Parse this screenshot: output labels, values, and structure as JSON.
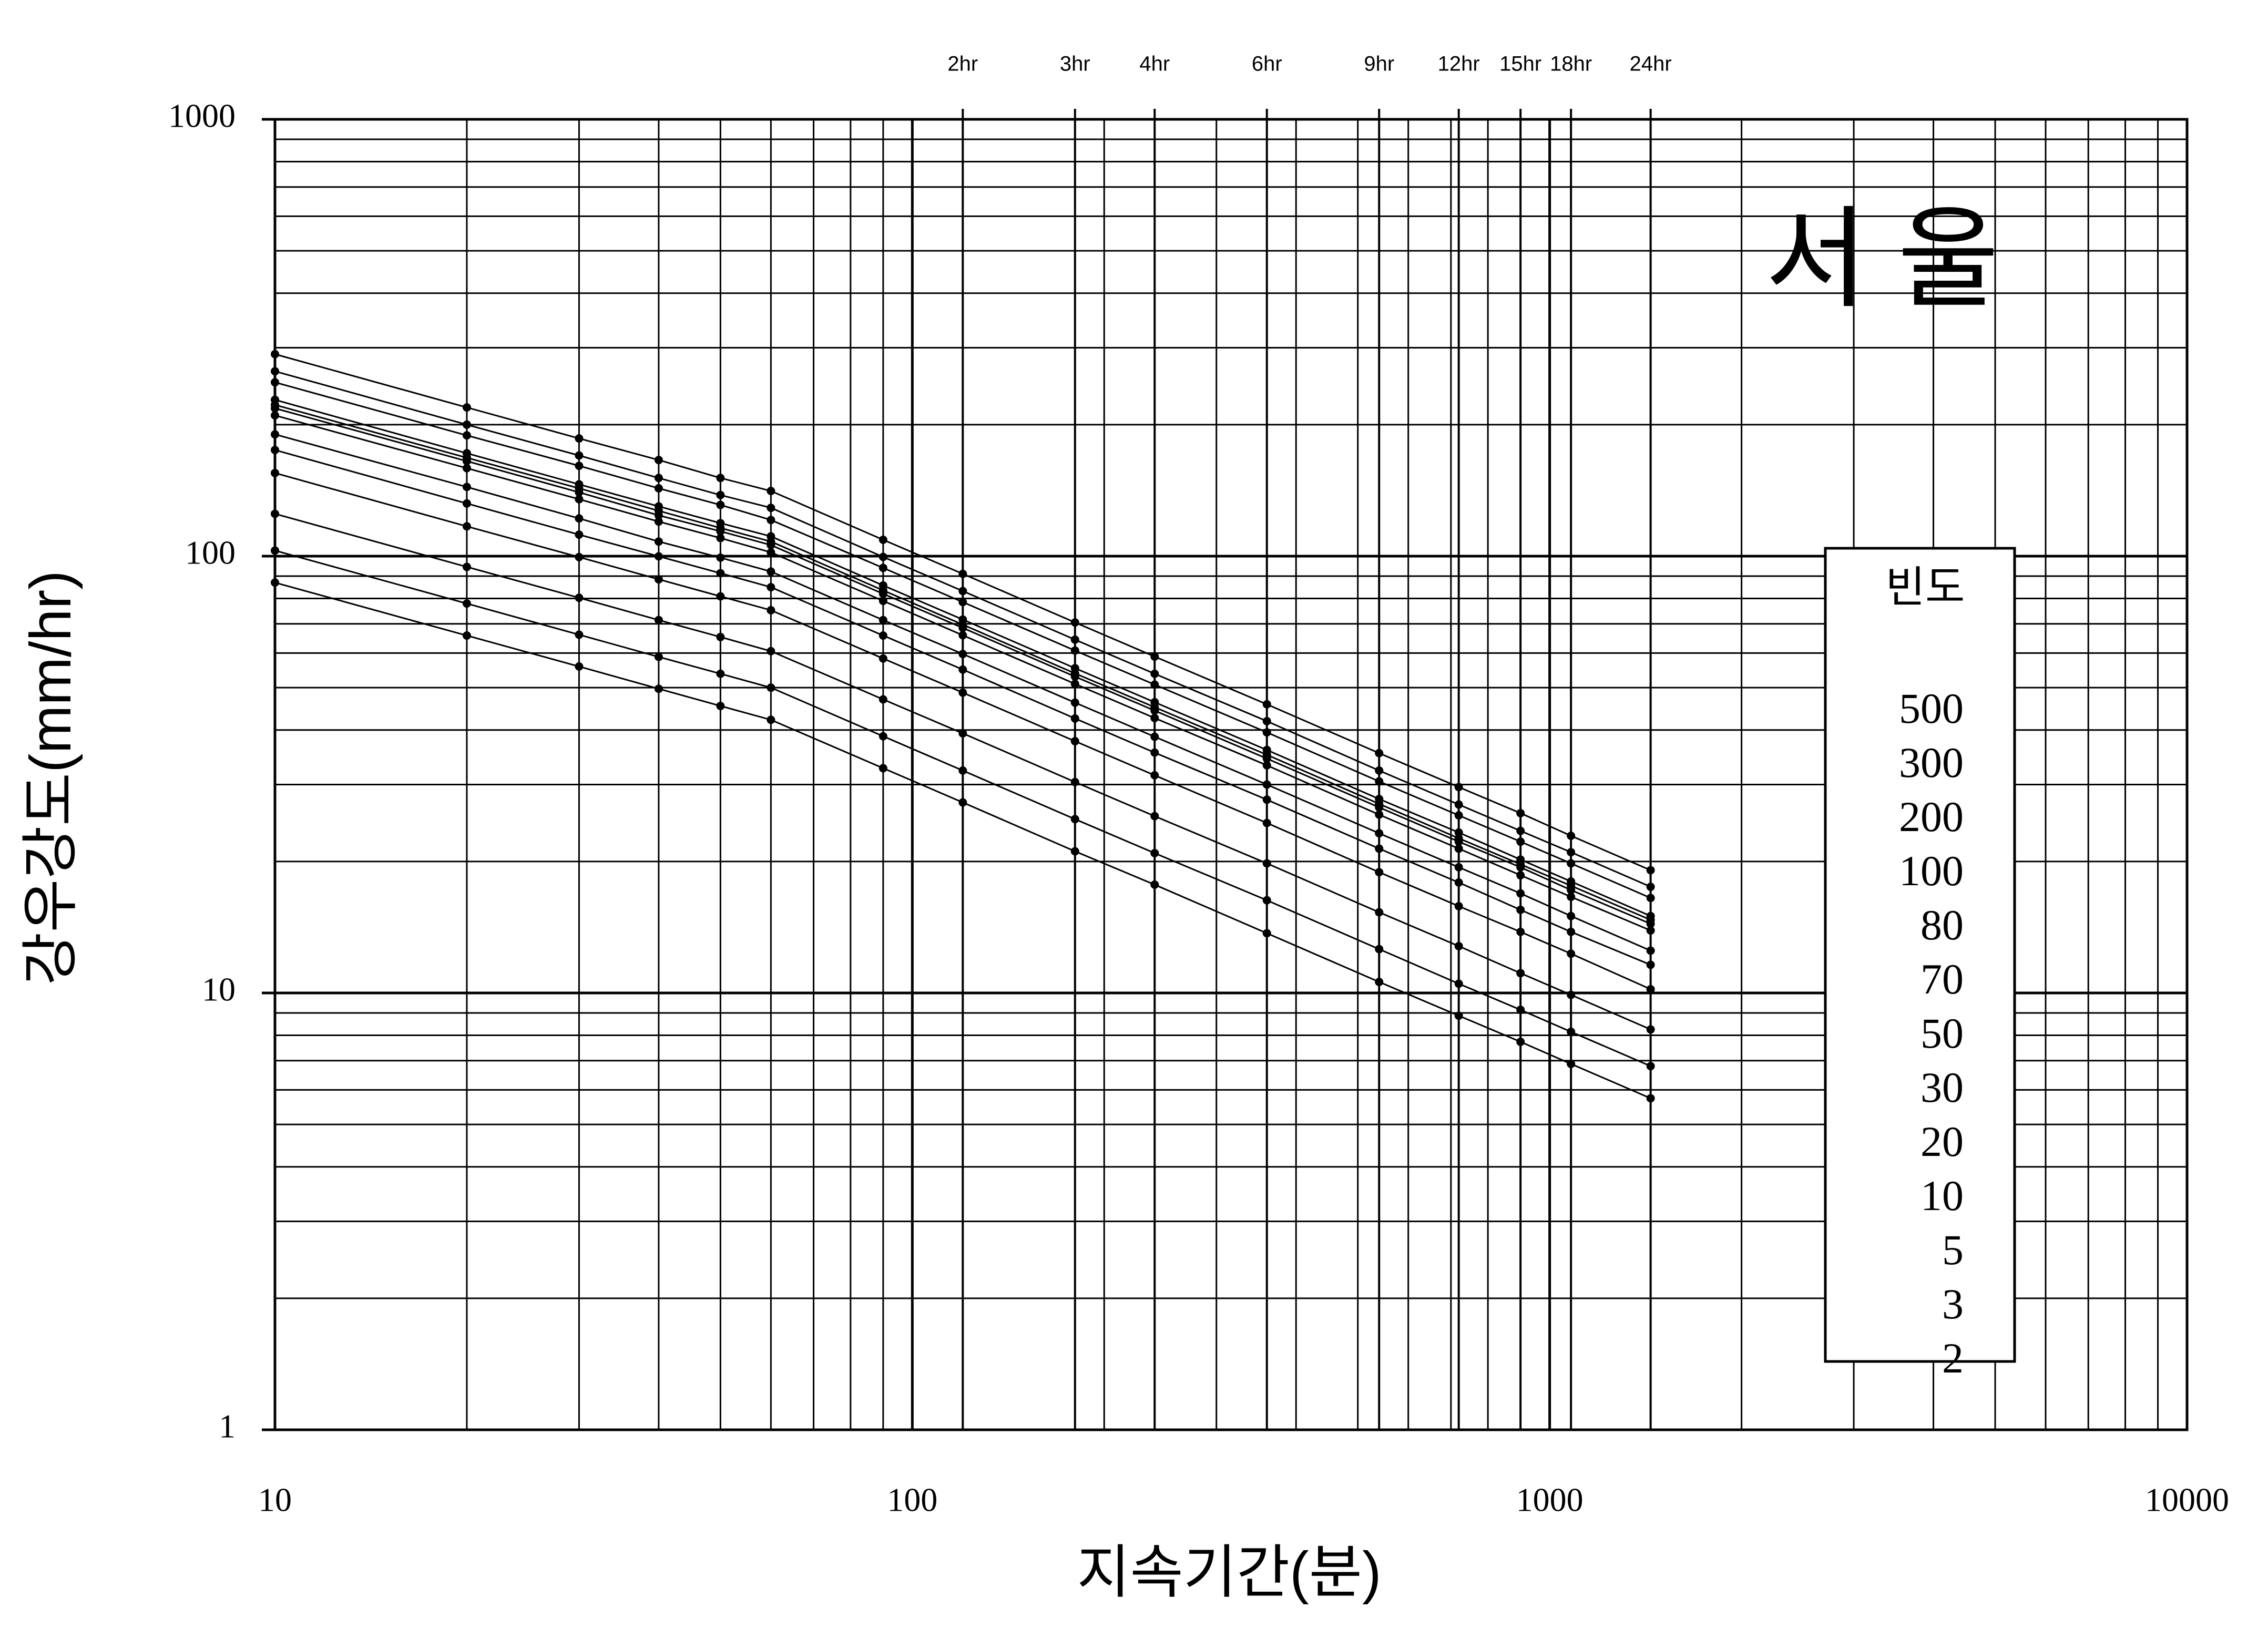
{
  "chart_data": {
    "type": "line",
    "title": "서 울",
    "x_label": "지속기간(분)",
    "y_label": "강우강도(mm/hr)",
    "log_x": true,
    "log_y": true,
    "grid": true,
    "minor_grid": true,
    "xlim": [
      10,
      10000
    ],
    "ylim": [
      1,
      1000
    ],
    "xticks": [
      10,
      100,
      1000,
      10000
    ],
    "yticks": [
      1,
      10,
      100,
      1000
    ],
    "top_ticks": [
      {
        "value": 120,
        "label": "2hr"
      },
      {
        "value": 180,
        "label": "3hr"
      },
      {
        "value": 240,
        "label": "4hr"
      },
      {
        "value": 360,
        "label": "6hr"
      },
      {
        "value": 540,
        "label": "9hr"
      },
      {
        "value": 720,
        "label": "12hr"
      },
      {
        "value": 900,
        "label": "15hr"
      },
      {
        "value": 1080,
        "label": "18hr"
      },
      {
        "value": 1440,
        "label": "24hr"
      }
    ],
    "legend": "right",
    "legend_title": "빈도",
    "x": [
      10,
      20,
      30,
      40,
      50,
      60,
      90,
      120,
      180,
      240,
      360,
      540,
      720,
      900,
      1080,
      1440
    ],
    "series": [
      {
        "name": "500",
        "color": "#000000",
        "values": [
          290,
          219,
          186,
          166,
          151,
          141,
          109,
          91.1,
          70.5,
          58.9,
          45.8,
          35.4,
          29.6,
          25.8,
          22.9,
          19.1
        ]
      },
      {
        "name": "300",
        "color": "#000000",
        "values": [
          265,
          200,
          170,
          151,
          138,
          129,
          99.6,
          83.2,
          64.4,
          53.8,
          41.9,
          32.3,
          27.0,
          23.5,
          21.0,
          17.5
        ]
      },
      {
        "name": "200",
        "color": "#000000",
        "values": [
          250,
          189,
          161,
          143,
          131,
          121,
          94.0,
          78.5,
          60.8,
          50.8,
          39.5,
          30.5,
          25.5,
          22.2,
          19.8,
          16.5
        ]
      },
      {
        "name": "100",
        "color": "#000000",
        "values": [
          228,
          172,
          146,
          130,
          119,
          111,
          85.7,
          71.6,
          55.4,
          46.3,
          36.0,
          27.8,
          23.3,
          20.2,
          18.0,
          15.0
        ]
      },
      {
        "name": "80",
        "color": "#000000",
        "values": [
          222,
          168,
          143,
          127,
          116,
          108,
          83.5,
          69.7,
          53.9,
          45.1,
          35.1,
          27.1,
          22.6,
          19.7,
          17.6,
          14.7
        ]
      },
      {
        "name": "70",
        "color": "#000000",
        "values": [
          218,
          165,
          140,
          124,
          114,
          106,
          82.0,
          68.5,
          53.0,
          44.3,
          34.4,
          26.6,
          22.2,
          19.4,
          17.2,
          14.4
        ]
      },
      {
        "name": "50",
        "color": "#000000",
        "values": [
          210,
          159,
          135,
          120,
          110,
          102,
          79.0,
          65.9,
          51.0,
          42.6,
          33.2,
          25.6,
          21.4,
          18.6,
          16.6,
          13.9
        ]
      },
      {
        "name": "30",
        "color": "#000000",
        "values": [
          190,
          144,
          122,
          108,
          99.2,
          92.2,
          71.4,
          59.7,
          46.2,
          38.6,
          30.0,
          23.2,
          19.4,
          16.9,
          15.0,
          12.5
        ]
      },
      {
        "name": "20",
        "color": "#000000",
        "values": [
          175,
          132,
          112,
          99.9,
          91.4,
          84.9,
          65.8,
          55.0,
          42.5,
          35.5,
          27.7,
          21.4,
          17.9,
          15.5,
          13.8,
          11.6
        ]
      },
      {
        "name": "10",
        "color": "#000000",
        "values": [
          155,
          117,
          99.5,
          88.5,
          80.9,
          75.2,
          58.3,
          48.7,
          37.7,
          31.5,
          24.5,
          18.9,
          15.8,
          13.8,
          12.3,
          10.2
        ]
      },
      {
        "name": "5",
        "color": "#000000",
        "values": [
          125,
          94.5,
          80.3,
          71.4,
          65.3,
          60.6,
          47.0,
          39.3,
          30.4,
          25.4,
          19.8,
          15.3,
          12.8,
          11.1,
          9.9,
          8.25
        ]
      },
      {
        "name": "3",
        "color": "#000000",
        "values": [
          103,
          77.9,
          66.1,
          58.8,
          53.8,
          50.0,
          38.7,
          32.3,
          25.0,
          20.9,
          16.3,
          12.6,
          10.5,
          9.15,
          8.15,
          6.8
        ]
      },
      {
        "name": "2",
        "color": "#000000",
        "values": [
          87,
          65.8,
          55.9,
          49.7,
          45.4,
          42.2,
          32.7,
          27.3,
          21.1,
          17.7,
          13.7,
          10.6,
          8.87,
          7.73,
          6.88,
          5.74
        ]
      }
    ]
  }
}
